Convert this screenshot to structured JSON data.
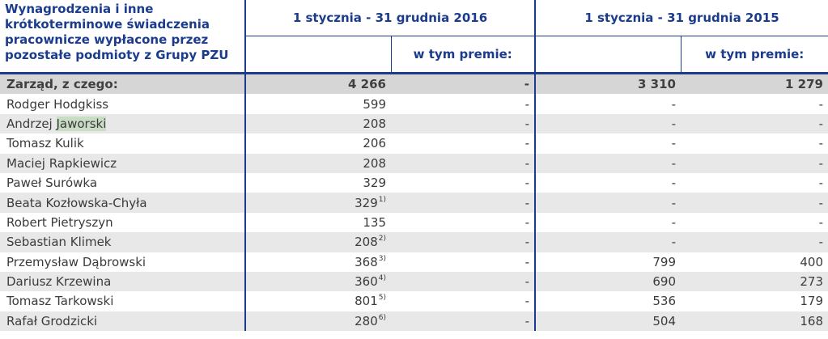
{
  "header": {
    "corner": "Wynagrodzenia i inne krótkoterminowe świadczenia pracownicze wypłacone przez pozostałe podmioty z Grupy PZU",
    "period_2016": "1 stycznia - 31 grudnia 2016",
    "period_2015": "1 stycznia - 31 grudnia 2015",
    "bonus_label": "w tym premie:"
  },
  "rows": [
    {
      "name": "Zarząd, z czego:",
      "v2016": "4 266",
      "note": "",
      "b2016": "-",
      "v2015": "3 310",
      "b2015": "1 279"
    },
    {
      "name": "Rodger Hodgkiss",
      "v2016": "599",
      "note": "",
      "b2016": "-",
      "v2015": "-",
      "b2015": "-"
    },
    {
      "name_a": "Andrzej ",
      "name_b": "Jaworski",
      "v2016": "208",
      "note": "",
      "b2016": "-",
      "v2015": "-",
      "b2015": "-"
    },
    {
      "name": "Tomasz Kulik",
      "v2016": "206",
      "note": "",
      "b2016": "-",
      "v2015": "-",
      "b2015": "-"
    },
    {
      "name": "Maciej Rapkiewicz",
      "v2016": "208",
      "note": "",
      "b2016": "-",
      "v2015": "-",
      "b2015": "-"
    },
    {
      "name": "Paweł Surówka",
      "v2016": "329",
      "note": "",
      "b2016": "-",
      "v2015": "-",
      "b2015": "-"
    },
    {
      "name": "Beata Kozłowska-Chyła",
      "v2016": "329",
      "note": "1)",
      "b2016": "-",
      "v2015": "-",
      "b2015": "-"
    },
    {
      "name": "Robert Pietryszyn",
      "v2016": "135",
      "note": "",
      "b2016": "-",
      "v2015": "-",
      "b2015": "-"
    },
    {
      "name": "Sebastian Klimek",
      "v2016": "208",
      "note": "2)",
      "b2016": "-",
      "v2015": "-",
      "b2015": "-"
    },
    {
      "name": "Przemysław Dąbrowski",
      "v2016": "368",
      "note": "3)",
      "b2016": "-",
      "v2015": "799",
      "b2015": "400"
    },
    {
      "name": "Dariusz Krzewina",
      "v2016": "360",
      "note": "4)",
      "b2016": "-",
      "v2015": "690",
      "b2015": "273"
    },
    {
      "name": "Tomasz Tarkowski",
      "v2016": "801",
      "note": "5)",
      "b2016": "-",
      "v2015": "536",
      "b2015": "179"
    },
    {
      "name": "Rafał Grodzicki",
      "v2016": "280",
      "note": "6)",
      "b2016": "-",
      "v2015": "504",
      "b2015": "168"
    }
  ]
}
